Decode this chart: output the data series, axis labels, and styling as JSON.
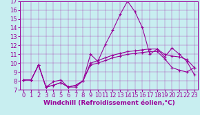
{
  "xlabel": "Windchill (Refroidissement éolien,°C)",
  "background_color": "#c8eef0",
  "line_color": "#990099",
  "xlim": [
    -0.5,
    23.5
  ],
  "ylim": [
    7,
    17
  ],
  "xticks": [
    0,
    1,
    2,
    3,
    4,
    5,
    6,
    7,
    8,
    9,
    10,
    11,
    12,
    13,
    14,
    15,
    16,
    17,
    18,
    19,
    20,
    21,
    22,
    23
  ],
  "yticks": [
    7,
    8,
    9,
    10,
    11,
    12,
    13,
    14,
    15,
    16,
    17
  ],
  "line1_x": [
    0,
    1,
    2,
    3,
    4,
    5,
    6,
    7,
    8,
    9,
    10,
    11,
    12,
    13,
    14,
    15,
    16,
    17,
    18,
    19,
    20,
    21,
    22,
    23
  ],
  "line1_y": [
    8.1,
    8.1,
    9.8,
    7.3,
    7.9,
    8.1,
    7.3,
    7.3,
    8.0,
    11.0,
    10.2,
    12.1,
    13.7,
    15.5,
    17.0,
    15.8,
    14.0,
    11.0,
    11.6,
    10.7,
    11.7,
    11.0,
    10.2,
    8.7
  ],
  "line2_x": [
    0,
    1,
    2,
    3,
    4,
    5,
    6,
    7,
    8,
    9,
    10,
    11,
    12,
    13,
    14,
    15,
    16,
    17,
    18,
    19,
    20,
    21,
    22,
    23
  ],
  "line2_y": [
    8.1,
    8.1,
    9.8,
    7.3,
    7.5,
    7.8,
    7.3,
    7.5,
    8.0,
    10.0,
    10.3,
    10.6,
    10.9,
    11.1,
    11.3,
    11.4,
    11.5,
    11.6,
    11.6,
    11.0,
    10.8,
    10.7,
    10.4,
    9.5
  ],
  "line3_x": [
    0,
    1,
    2,
    3,
    4,
    5,
    6,
    7,
    8,
    9,
    10,
    11,
    12,
    13,
    14,
    15,
    16,
    17,
    18,
    19,
    20,
    21,
    22,
    23
  ],
  "line3_y": [
    8.1,
    8.1,
    9.8,
    7.3,
    7.5,
    7.8,
    7.3,
    7.5,
    8.0,
    9.8,
    10.0,
    10.3,
    10.6,
    10.8,
    11.0,
    11.1,
    11.2,
    11.3,
    11.3,
    10.5,
    9.5,
    9.2,
    9.0,
    9.5
  ],
  "xlabel_fontsize": 6.5,
  "tick_fontsize": 6.0
}
